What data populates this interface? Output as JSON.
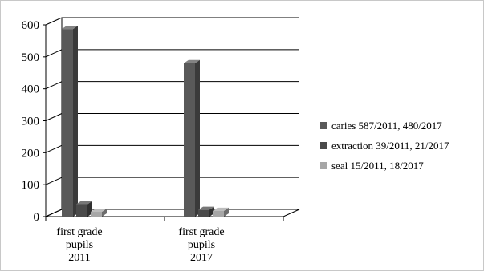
{
  "chart_data": {
    "type": "bar",
    "title": "",
    "xlabel": "",
    "ylabel": "",
    "ylim": [
      0,
      600
    ],
    "yticks": [
      0,
      100,
      200,
      300,
      400,
      500,
      600
    ],
    "grid": true,
    "legend_position": "right",
    "categories": [
      [
        "first grade",
        "pupils",
        "2011"
      ],
      [
        "first grade",
        "pupils",
        "2017"
      ]
    ],
    "series": [
      {
        "name": "caries  587/2011, 480/2017",
        "values": [
          587,
          480
        ],
        "color": "#595959"
      },
      {
        "name": "extraction 39/2011,  21/2017",
        "values": [
          39,
          21
        ],
        "color": "#4a4a4a"
      },
      {
        "name": "seal 15/2011,  18/2017",
        "values": [
          15,
          18
        ],
        "color": "#a6a6a6"
      }
    ]
  }
}
